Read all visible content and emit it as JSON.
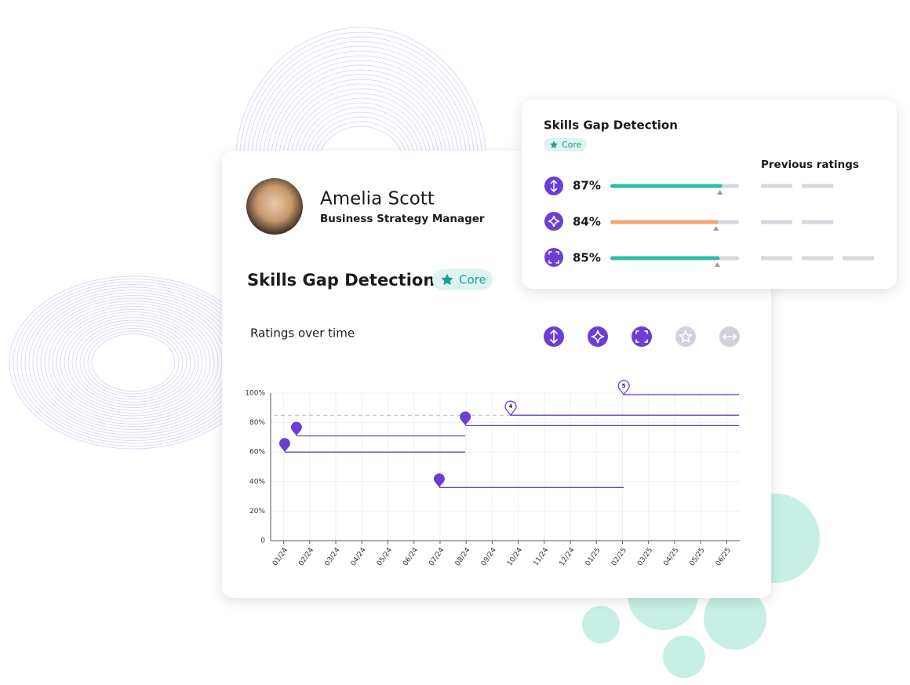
{
  "profile": {
    "name": "Amelia Scott",
    "role": "Business Strategy Manager"
  },
  "skill": {
    "title": "Skills Gap Detection",
    "tag": "Core"
  },
  "ratings_chart": {
    "title": "Ratings over time",
    "type": "step-segments",
    "categories": [
      "01/24",
      "02/24",
      "03/24",
      "04/24",
      "05/24",
      "06/24",
      "07/24",
      "08/24",
      "09/24",
      "10/24",
      "11/24",
      "12/24",
      "01/25",
      "02/25",
      "03/25",
      "04/25",
      "05/25",
      "06/25"
    ],
    "xlim": [
      -0.5,
      17.5
    ],
    "ylim": [
      0,
      100
    ],
    "yticks": [
      0,
      {
        "value": 20,
        "label": "20%"
      },
      {
        "value": 40,
        "label": "40%"
      },
      {
        "value": 60,
        "label": "60%"
      },
      {
        "value": 80,
        "label": "80%"
      },
      {
        "value": 100,
        "label": "100%"
      }
    ],
    "target": 85,
    "color": "#6b3fd4",
    "segments": [
      {
        "x": 0.04,
        "x_end": 6.97,
        "value": 60
      },
      {
        "x": 0.49,
        "x_end": 6.97,
        "value": 71
      },
      {
        "x": 5.97,
        "x_end": 13.05,
        "value": 36
      },
      {
        "x": 6.97,
        "x_end": 17.47,
        "value": 78
      },
      {
        "x": 8.71,
        "x_end": 17.47,
        "value": 85,
        "label": "4"
      },
      {
        "x": 13.05,
        "x_end": 17.47,
        "value": 99,
        "label": "5"
      }
    ]
  },
  "popup": {
    "title": "Skills Gap Detection",
    "tag": "Core",
    "previous_label": "Previous ratings",
    "rows": [
      {
        "value": 87,
        "label": "87%",
        "color": "#2bbfa4"
      },
      {
        "value": 84,
        "label": "84%",
        "color": "#f5a572"
      },
      {
        "value": 85,
        "label": "85%",
        "color": "#2bbfa4"
      }
    ]
  }
}
